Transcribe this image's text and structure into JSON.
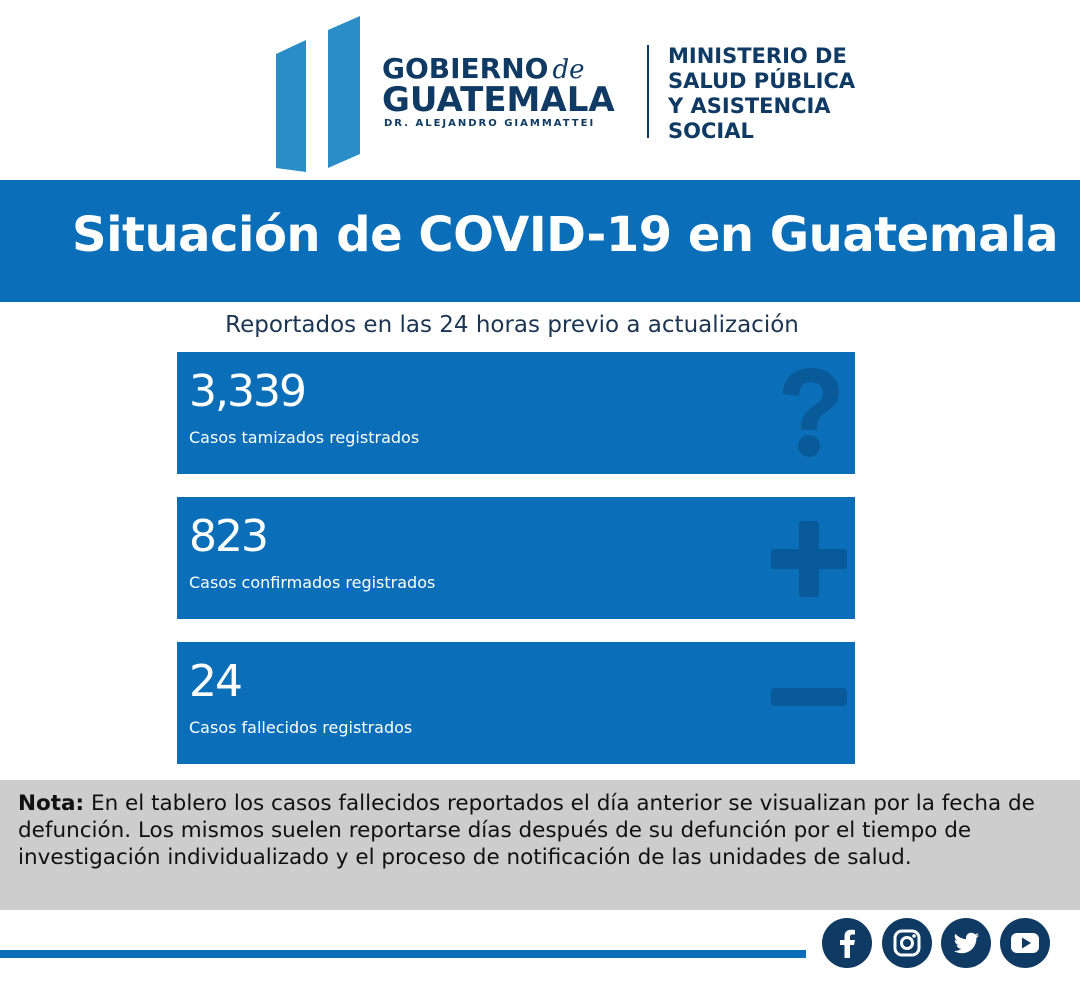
{
  "header": {
    "gobierno": "GOBIERNO",
    "de": "de",
    "guatemala": "GUATEMALA",
    "president": "DR. ALEJANDRO GIAMMATTEI",
    "ministry_lines": [
      "MINISTERIO DE",
      "SALUD PÚBLICA",
      "Y ASISTENCIA",
      "SOCIAL"
    ]
  },
  "title": "Situación de COVID-19 en Guatemala",
  "subtitle": "Reportados en las 24 horas previo a actualización",
  "cards": [
    {
      "value": "3,339",
      "label": "Casos tamizados registrados",
      "icon": "question-mark-icon"
    },
    {
      "value": "823",
      "label": "Casos confirmados registrados",
      "icon": "plus-icon"
    },
    {
      "value": "24",
      "label": "Casos fallecidos registrados",
      "icon": "minus-icon"
    }
  ],
  "note": {
    "label": "Nota:",
    "text": " En el tablero los casos fallecidos reportados el día anterior se visualizan por la fecha de defunción. Los mismos suelen reportarse días después de su defunción por el tiempo de investigación individualizado y el proceso de notificación de las unidades de salud."
  },
  "social": [
    "facebook-icon",
    "instagram-icon",
    "twitter-icon",
    "youtube-icon"
  ],
  "colors": {
    "brand_blue": "#0a6eb8",
    "navy": "#0f3a63",
    "logo_blue": "#2a8dc8",
    "note_bg": "#cdcdcd"
  }
}
